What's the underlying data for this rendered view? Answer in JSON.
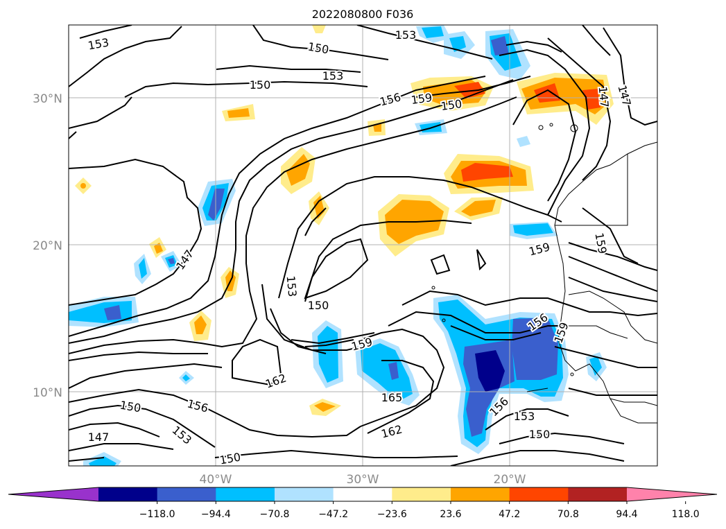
{
  "title": "2022080800 F036",
  "lat_labels": [
    "30°N",
    "20°N",
    "10°N"
  ],
  "lon_labels": [
    "40°W",
    "30°W",
    "20°W"
  ],
  "contour_labels": [
    "153",
    "150",
    "153",
    "150",
    "153",
    "156",
    "159",
    "150",
    "147",
    "147",
    "159",
    "159",
    "153",
    "150",
    "156",
    "159",
    "162",
    "159",
    "165",
    "162",
    "156",
    "153",
    "150",
    "150",
    "156",
    "153",
    "147",
    "150"
  ],
  "colorbar": {
    "colors": [
      "#9932cc",
      "#00008b",
      "#3a5fcd",
      "#00bfff",
      "#b0e2ff",
      "#ffffff",
      "#ffec8b",
      "#ffa500",
      "#ff4500",
      "#b22222",
      "#ff82ab"
    ],
    "ticks": [
      "−118.0",
      "−94.4",
      "−70.8",
      "−47.2",
      "−23.6",
      "23.6",
      "47.2",
      "70.8",
      "94.4",
      "118.0"
    ]
  }
}
